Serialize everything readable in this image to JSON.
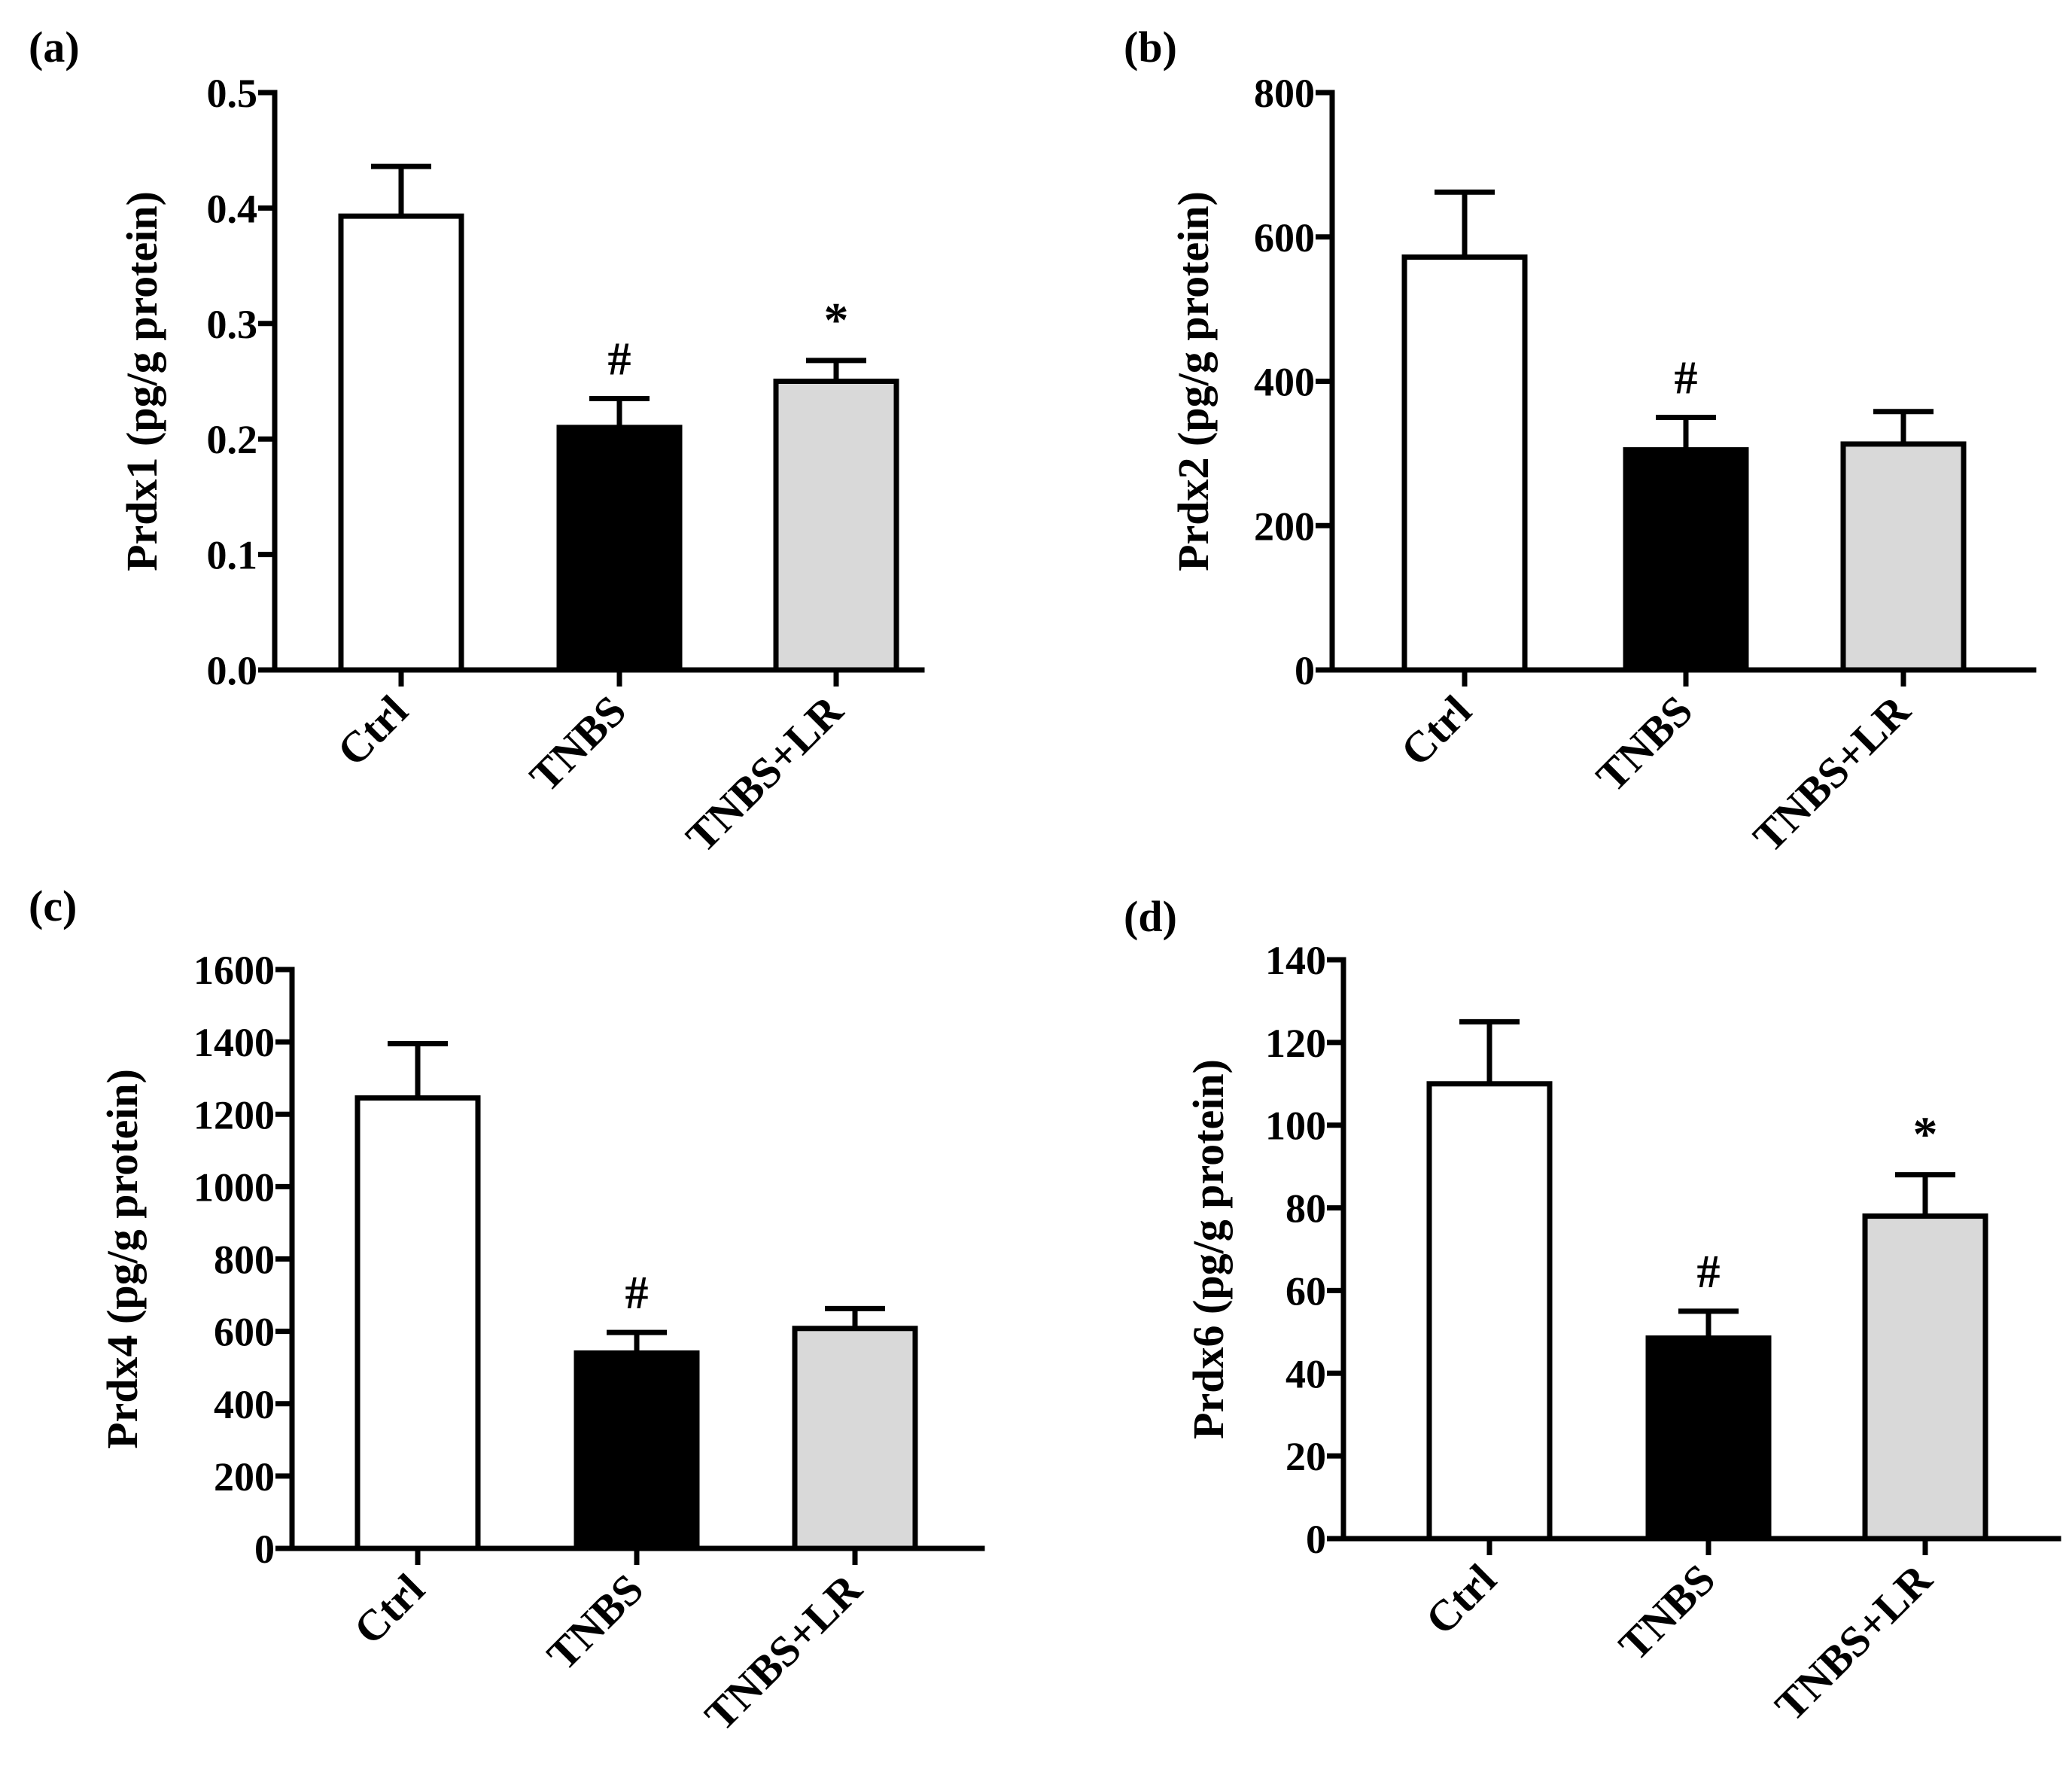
{
  "chart_data": [
    {
      "panel": "(a)",
      "type": "bar",
      "categories": [
        "Ctrl",
        "TNBS",
        "TNBS+LR"
      ],
      "values": [
        0.393,
        0.21,
        0.25
      ],
      "errors": [
        0.043,
        0.025,
        0.018
      ],
      "colors": [
        "#ffffff",
        "#000000",
        "#d9d9d9"
      ],
      "annotations": [
        "",
        "#",
        "*"
      ],
      "ylabel": "Prdx1 (pg/g protein)",
      "xlabel": "",
      "ylim": [
        0,
        0.5
      ],
      "yticks": [
        0.0,
        0.1,
        0.2,
        0.3,
        0.4,
        0.5
      ],
      "ytick_labels": [
        "0.0",
        "0.1",
        "0.2",
        "0.3",
        "0.4",
        "0.5"
      ],
      "grid": false
    },
    {
      "panel": "(b)",
      "type": "bar",
      "categories": [
        "Ctrl",
        "TNBS",
        "TNBS+LR"
      ],
      "values": [
        572,
        305,
        313
      ],
      "errors": [
        90,
        45,
        45
      ],
      "colors": [
        "#ffffff",
        "#000000",
        "#d9d9d9"
      ],
      "annotations": [
        "",
        "#",
        ""
      ],
      "ylabel": "Prdx2 (pg/g protein)",
      "xlabel": "",
      "ylim": [
        0,
        800
      ],
      "yticks": [
        0,
        200,
        400,
        600,
        800
      ],
      "ytick_labels": [
        "0",
        "200",
        "400",
        "600",
        "800"
      ],
      "grid": false
    },
    {
      "panel": "(c)",
      "type": "bar",
      "categories": [
        "Ctrl",
        "TNBS",
        "TNBS+LR"
      ],
      "values": [
        1245,
        540,
        608
      ],
      "errors": [
        150,
        57,
        55
      ],
      "colors": [
        "#ffffff",
        "#000000",
        "#d9d9d9"
      ],
      "annotations": [
        "",
        "#",
        ""
      ],
      "ylabel": "Prdx4 (pg/g protein)",
      "xlabel": "",
      "ylim": [
        0,
        1600
      ],
      "yticks": [
        0,
        200,
        400,
        600,
        800,
        1000,
        1200,
        1400,
        1600
      ],
      "ytick_labels": [
        "0",
        "200",
        "400",
        "600",
        "800",
        "1000",
        "1200",
        "1400",
        "1600"
      ],
      "grid": false
    },
    {
      "panel": "(d)",
      "type": "bar",
      "categories": [
        "Ctrl",
        "TNBS",
        "TNBS+LR"
      ],
      "values": [
        110,
        48.5,
        78
      ],
      "errors": [
        15,
        6.5,
        10
      ],
      "colors": [
        "#ffffff",
        "#000000",
        "#d9d9d9"
      ],
      "annotations": [
        "",
        "#",
        "*"
      ],
      "ylabel": "Prdx6 (pg/g protein)",
      "xlabel": "",
      "ylim": [
        0,
        140
      ],
      "yticks": [
        0,
        20,
        40,
        60,
        80,
        100,
        120,
        140
      ],
      "ytick_labels": [
        "0",
        "20",
        "40",
        "60",
        "80",
        "100",
        "120",
        "140"
      ],
      "grid": false
    }
  ]
}
